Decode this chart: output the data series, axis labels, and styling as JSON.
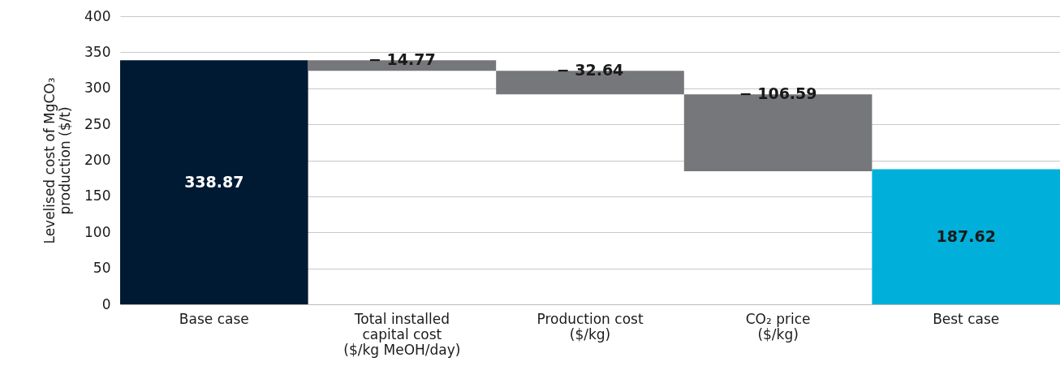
{
  "chart_data": {
    "type": "bar",
    "ylabel": "Levelised cost of MgCO₃ production ($/t)",
    "categories": [
      "Base case",
      "Total installed capital cost ($/kg MeOH/day)",
      "Production cost ($/kg)",
      "CO₂ price ($/kg)",
      "Best case"
    ],
    "values": [
      338.87,
      -14.77,
      -32.64,
      -106.59,
      187.62
    ],
    "base": [
      0,
      338.87,
      324.1,
      291.46,
      0
    ],
    "colors": [
      "#011a33",
      "#76777a",
      "#76777a",
      "#76777a",
      "#00b0da"
    ],
    "value_labels": [
      "338.87",
      "− 14.77",
      "− 32.64",
      "− 106.59",
      "187.62"
    ],
    "ylim": [
      0,
      400
    ],
    "yticks": [
      0,
      50,
      100,
      150,
      200,
      250,
      300,
      350,
      400
    ],
    "grid": "y"
  }
}
